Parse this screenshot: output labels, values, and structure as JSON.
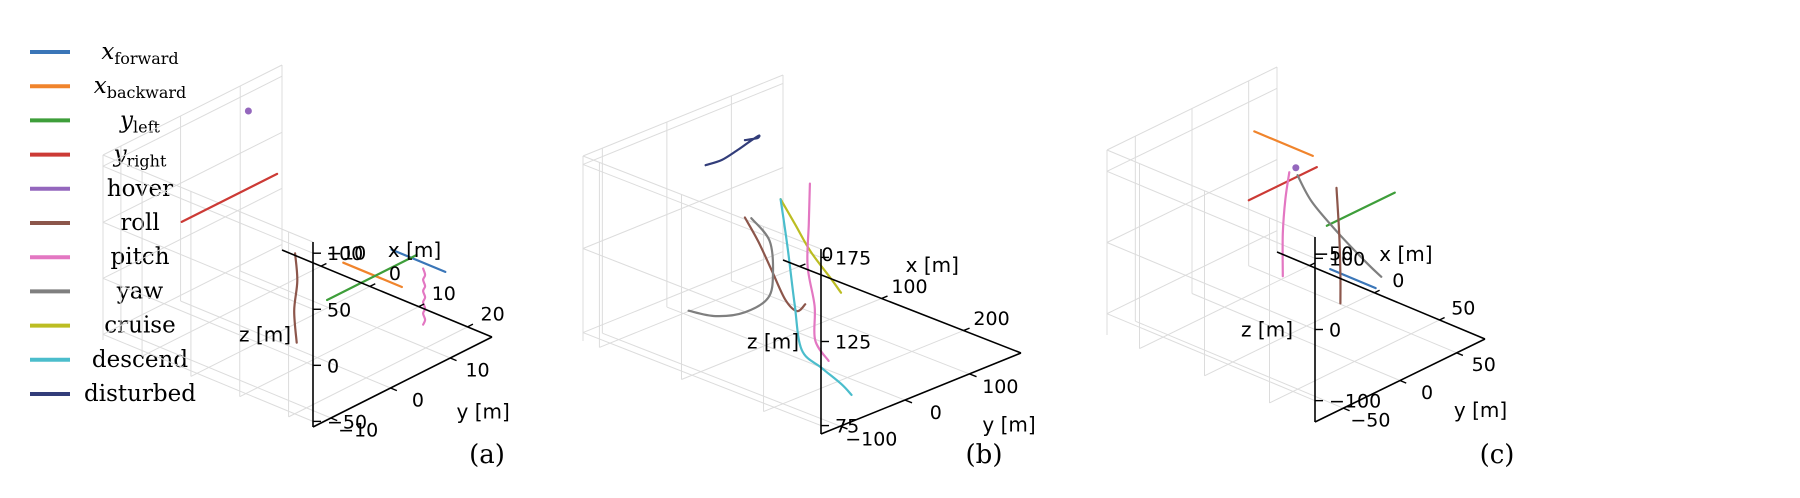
{
  "chart_data": {
    "type": "line",
    "series_styles": [
      {
        "key": "x_forward",
        "color": "#3a76b8"
      },
      {
        "key": "x_backward",
        "color": "#f0842c"
      },
      {
        "key": "y_left",
        "color": "#3e9e3a"
      },
      {
        "key": "y_right",
        "color": "#cc3a35"
      },
      {
        "key": "hover",
        "color": "#9467bd"
      },
      {
        "key": "roll",
        "color": "#8c564b"
      },
      {
        "key": "pitch",
        "color": "#e377c2"
      },
      {
        "key": "yaw",
        "color": "#7f7f7f"
      },
      {
        "key": "cruise",
        "color": "#bcbd22"
      },
      {
        "key": "descend",
        "color": "#4bbdcc"
      },
      {
        "key": "disturbed",
        "color": "#323d7a"
      }
    ],
    "legend": {
      "items": [
        {
          "key": "x_forward",
          "base": "x",
          "sub": "forward",
          "math": true
        },
        {
          "key": "x_backward",
          "base": "x",
          "sub": "backward",
          "math": true
        },
        {
          "key": "y_left",
          "base": "y",
          "sub": "left",
          "math": true
        },
        {
          "key": "y_right",
          "base": "y",
          "sub": "right",
          "math": true
        },
        {
          "key": "hover",
          "text": "hover"
        },
        {
          "key": "roll",
          "text": "roll"
        },
        {
          "key": "pitch",
          "text": "pitch"
        },
        {
          "key": "yaw",
          "text": "yaw"
        },
        {
          "key": "cruise",
          "text": "cruise"
        },
        {
          "key": "descend",
          "text": "descend"
        },
        {
          "key": "disturbed",
          "text": "disturbed"
        }
      ],
      "placement": "left"
    },
    "panels": [
      {
        "caption": "(a)",
        "xlabel": "x [m]",
        "ylabel": "y [m]",
        "zlabel": "z [m]",
        "xlim": [
          -18,
          25
        ],
        "ylim": [
          -13,
          17
        ],
        "zlim": [
          -55,
          110
        ],
        "xticks": [
          -10,
          0,
          10,
          20
        ],
        "yticks": [
          -10,
          0,
          10
        ],
        "zticks": [
          -50,
          0,
          50,
          100
        ],
        "series": [
          {
            "key": "y_right",
            "points": [
              [
                -8,
                8,
                55
              ],
              [
                -8,
                -8,
                55
              ]
            ]
          },
          {
            "key": "hover",
            "points": [
              [
                -9,
                4,
                120
              ]
            ]
          },
          {
            "key": "x_forward",
            "points": [
              [
                13,
                10,
                20
              ],
              [
                24,
                10,
                20
              ]
            ]
          },
          {
            "key": "x_backward",
            "points": [
              [
                20,
                6,
                10
              ],
              [
                8,
                6,
                10
              ]
            ]
          },
          {
            "key": "y_left",
            "points": [
              [
                12,
                0,
                0
              ],
              [
                12,
                15,
                0
              ]
            ]
          },
          {
            "key": "roll",
            "points": [
              [
                3,
                2,
                20
              ],
              [
                3.1,
                2.3,
                -5
              ],
              [
                3.2,
                1.7,
                -30
              ],
              [
                3.1,
                2.2,
                -60
              ]
            ]
          },
          {
            "key": "pitch",
            "points": [
              [
                17,
                12,
                5
              ],
              [
                17.4,
                12,
                0
              ],
              [
                17,
                12,
                -5
              ],
              [
                17.4,
                12,
                -10
              ],
              [
                17,
                12,
                -15
              ],
              [
                17.4,
                12,
                -20
              ],
              [
                17,
                12,
                -25
              ],
              [
                17.4,
                12,
                -30
              ],
              [
                17,
                12,
                -35
              ],
              [
                17.4,
                12,
                -40
              ],
              [
                17,
                12,
                -45
              ]
            ]
          }
        ]
      },
      {
        "caption": "(b)",
        "xlabel": "x [m]",
        "ylabel": "y [m]",
        "zlabel": "z [m]",
        "xlim": [
          -20,
          270
        ],
        "ylim": [
          -130,
          180
        ],
        "zlim": [
          70,
          180
        ],
        "xticks": [
          0,
          100,
          200
        ],
        "yticks": [
          -100,
          0,
          100
        ],
        "zticks": [
          75,
          125,
          175
        ],
        "series": [
          {
            "key": "disturbed",
            "points": [
              [
                -20,
                60,
                145
              ],
              [
                0,
                60,
                152
              ],
              [
                20,
                60,
                162
              ],
              [
                35,
                60,
                170
              ],
              [
                45,
                60,
                175
              ],
              [
                35,
                70,
                170
              ],
              [
                20,
                70,
                166
              ]
            ]
          },
          {
            "key": "cruise",
            "points": [
              [
                40,
                100,
                130
              ],
              [
                90,
                60,
                130
              ],
              [
                140,
                20,
                130
              ],
              [
                180,
                0,
                125
              ],
              [
                200,
                -10,
                122
              ]
            ]
          },
          {
            "key": "roll",
            "points": [
              [
                20,
                70,
                120
              ],
              [
                60,
                40,
                118
              ],
              [
                100,
                10,
                113
              ],
              [
                140,
                -20,
                108
              ],
              [
                170,
                -40,
                110
              ],
              [
                180,
                -40,
                116
              ]
            ]
          },
          {
            "key": "pitch",
            "points": [
              [
                60,
                120,
                140
              ],
              [
                90,
                80,
                128
              ],
              [
                120,
                40,
                115
              ],
              [
                160,
                0,
                105
              ],
              [
                200,
                -50,
                100
              ],
              [
                240,
                -80,
                100
              ]
            ]
          },
          {
            "key": "yaw",
            "points": [
              [
                20,
                80,
                118
              ],
              [
                50,
                70,
                112
              ],
              [
                70,
                50,
                100
              ],
              [
                80,
                30,
                90
              ],
              [
                75,
                0,
                85
              ],
              [
                55,
                -20,
                82
              ],
              [
                30,
                -30,
                82
              ]
            ]
          },
          {
            "key": "descend",
            "points": [
              [
                40,
                100,
                130
              ],
              [
                80,
                60,
                115
              ],
              [
                120,
                20,
                95
              ],
              [
                160,
                -20,
                82
              ],
              [
                200,
                -40,
                82
              ],
              [
                240,
                -60,
                83
              ],
              [
                260,
                -70,
                82
              ]
            ]
          }
        ]
      },
      {
        "caption": "(c)",
        "xlabel": "x [m]",
        "ylabel": "y [m]",
        "zlabel": "z [m]",
        "xlim": [
          -75,
          85
        ],
        "ylim": [
          -75,
          75
        ],
        "zlim": [
          -130,
          130
        ],
        "xticks": [
          -50,
          0,
          50
        ],
        "yticks": [
          -50,
          0,
          50
        ],
        "zticks": [
          -100,
          0,
          100
        ],
        "series": [
          {
            "key": "x_backward",
            "points": [
              [
                -30,
                55,
                55
              ],
              [
                -75,
                55,
                55
              ]
            ]
          },
          {
            "key": "y_right",
            "points": [
              [
                -40,
                10,
                20
              ],
              [
                -40,
                70,
                20
              ]
            ]
          },
          {
            "key": "y_left",
            "points": [
              [
                20,
                10,
                30
              ],
              [
                20,
                70,
                30
              ]
            ]
          },
          {
            "key": "x_forward",
            "points": [
              [
                40,
                -10,
                0
              ],
              [
                75,
                -10,
                0
              ]
            ]
          },
          {
            "key": "yaw",
            "points": [
              [
                -20,
                30,
                55
              ],
              [
                0,
                20,
                40
              ],
              [
                30,
                10,
                25
              ],
              [
                60,
                0,
                15
              ],
              [
                75,
                -5,
                12
              ]
            ]
          },
          {
            "key": "hover",
            "points": [
              [
                -30,
                40,
                50
              ]
            ]
          },
          {
            "key": "pitch",
            "points": [
              [
                -35,
                40,
                40
              ],
              [
                -38,
                40,
                0
              ],
              [
                -40,
                40,
                -50
              ],
              [
                -40,
                40,
                -110
              ]
            ]
          },
          {
            "key": "roll",
            "points": [
              [
                10,
                30,
                60
              ],
              [
                12,
                30,
                0
              ],
              [
                13,
                30,
                -60
              ],
              [
                13,
                30,
                -100
              ]
            ]
          }
        ]
      }
    ]
  }
}
